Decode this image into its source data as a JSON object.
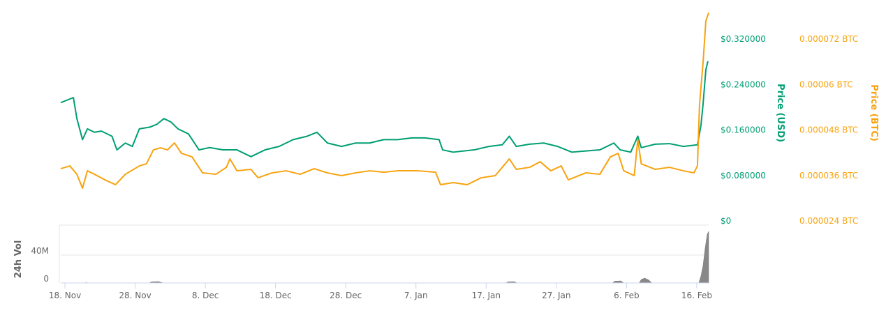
{
  "chart_data": {
    "type": "line",
    "x_unit": "days since 18. Nov",
    "x_ticks": [
      {
        "day": 0,
        "label": "18. Nov"
      },
      {
        "day": 10,
        "label": "28. Nov"
      },
      {
        "day": 20,
        "label": "8. Dec"
      },
      {
        "day": 30,
        "label": "18. Dec"
      },
      {
        "day": 40,
        "label": "28. Dec"
      },
      {
        "day": 50,
        "label": "7. Jan"
      },
      {
        "day": 60,
        "label": "17. Jan"
      },
      {
        "day": 70,
        "label": "27. Jan"
      },
      {
        "day": 80,
        "label": "6. Feb"
      },
      {
        "day": 90,
        "label": "16. Feb"
      }
    ],
    "xlim": [
      -0.6,
      91.7
    ],
    "usd_axis": {
      "label": "Price (USD)",
      "ylim": [
        0,
        0.32
      ],
      "ticks": [
        {
          "v": 0,
          "label": "$0"
        },
        {
          "v": 0.08,
          "label": "$0.080000"
        },
        {
          "v": 0.16,
          "label": "$0.160000"
        },
        {
          "v": 0.24,
          "label": "$0.240000"
        },
        {
          "v": 0.32,
          "label": "$0.320000"
        }
      ]
    },
    "btc_axis": {
      "label": "Price (BTC)",
      "ylim": [
        2.4e-05,
        7.2e-05
      ],
      "ticks": [
        {
          "v": 2.4e-05,
          "label": "0.000024 BTC"
        },
        {
          "v": 3.6e-05,
          "label": "0.000036 BTC"
        },
        {
          "v": 4.8e-05,
          "label": "0.000048 BTC"
        },
        {
          "v": 6e-05,
          "label": "0.00006 BTC"
        },
        {
          "v": 7.2e-05,
          "label": "0.000072 BTC"
        }
      ]
    },
    "vol_axis": {
      "label": "24h Vol",
      "ylim": [
        0,
        83000000
      ],
      "ticks": [
        {
          "v": 0,
          "label": "0"
        },
        {
          "v": 40000000,
          "label": "40M"
        }
      ]
    },
    "series": [
      {
        "name": "Price (USD)",
        "color": "#009e73",
        "points": [
          [
            -0.6,
            0.208
          ],
          [
            1.2,
            0.217
          ],
          [
            1.7,
            0.18
          ],
          [
            2.5,
            0.143
          ],
          [
            3.2,
            0.162
          ],
          [
            4.2,
            0.156
          ],
          [
            5.2,
            0.158
          ],
          [
            6.7,
            0.149
          ],
          [
            7.4,
            0.125
          ],
          [
            8.6,
            0.137
          ],
          [
            9.6,
            0.131
          ],
          [
            10.6,
            0.162
          ],
          [
            12.1,
            0.165
          ],
          [
            13.1,
            0.17
          ],
          [
            14.1,
            0.18
          ],
          [
            15.1,
            0.174
          ],
          [
            16.1,
            0.162
          ],
          [
            17.6,
            0.153
          ],
          [
            19.1,
            0.125
          ],
          [
            20.6,
            0.129
          ],
          [
            22.5,
            0.125
          ],
          [
            24.5,
            0.125
          ],
          [
            26.5,
            0.113
          ],
          [
            28.5,
            0.125
          ],
          [
            30.5,
            0.131
          ],
          [
            32.5,
            0.143
          ],
          [
            34.5,
            0.149
          ],
          [
            35.9,
            0.156
          ],
          [
            37.4,
            0.137
          ],
          [
            39.4,
            0.131
          ],
          [
            41.4,
            0.137
          ],
          [
            43.4,
            0.137
          ],
          [
            45.4,
            0.143
          ],
          [
            47.4,
            0.143
          ],
          [
            49.4,
            0.146
          ],
          [
            51.3,
            0.146
          ],
          [
            53.3,
            0.143
          ],
          [
            53.8,
            0.125
          ],
          [
            55.3,
            0.121
          ],
          [
            58.3,
            0.125
          ],
          [
            60.4,
            0.131
          ],
          [
            62.3,
            0.134
          ],
          [
            63.3,
            0.149
          ],
          [
            64.3,
            0.131
          ],
          [
            66.2,
            0.135
          ],
          [
            68.2,
            0.137
          ],
          [
            70.2,
            0.131
          ],
          [
            72.2,
            0.121
          ],
          [
            74.2,
            0.123
          ],
          [
            76.2,
            0.125
          ],
          [
            78.2,
            0.137
          ],
          [
            79.1,
            0.125
          ],
          [
            80.6,
            0.121
          ],
          [
            81.6,
            0.149
          ],
          [
            82.1,
            0.129
          ],
          [
            84.1,
            0.135
          ],
          [
            86.1,
            0.136
          ],
          [
            88.1,
            0.131
          ],
          [
            90.1,
            0.134
          ],
          [
            90.6,
            0.168
          ],
          [
            90.9,
            0.205
          ],
          [
            91.3,
            0.266
          ],
          [
            91.6,
            0.281
          ]
        ]
      },
      {
        "name": "Price (BTC)",
        "color": "#f7a30f",
        "points": [
          [
            -0.6,
            3.778e-05
          ],
          [
            0.7,
            3.852e-05
          ],
          [
            1.7,
            3.631e-05
          ],
          [
            2.5,
            3.264e-05
          ],
          [
            3.2,
            3.723e-05
          ],
          [
            4.2,
            3.631e-05
          ],
          [
            5.7,
            3.484e-05
          ],
          [
            7.2,
            3.356e-05
          ],
          [
            8.6,
            3.631e-05
          ],
          [
            10.6,
            3.852e-05
          ],
          [
            11.6,
            3.907e-05
          ],
          [
            12.6,
            4.274e-05
          ],
          [
            13.6,
            4.33e-05
          ],
          [
            14.6,
            4.274e-05
          ],
          [
            15.6,
            4.458e-05
          ],
          [
            16.6,
            4.183e-05
          ],
          [
            18.1,
            4.091e-05
          ],
          [
            19.6,
            3.668e-05
          ],
          [
            21.5,
            3.631e-05
          ],
          [
            23.0,
            3.815e-05
          ],
          [
            23.5,
            4.036e-05
          ],
          [
            24.5,
            3.723e-05
          ],
          [
            26.5,
            3.76e-05
          ],
          [
            27.5,
            3.539e-05
          ],
          [
            29.5,
            3.668e-05
          ],
          [
            31.5,
            3.723e-05
          ],
          [
            33.5,
            3.631e-05
          ],
          [
            35.5,
            3.778e-05
          ],
          [
            37.4,
            3.668e-05
          ],
          [
            39.4,
            3.595e-05
          ],
          [
            41.4,
            3.668e-05
          ],
          [
            43.4,
            3.723e-05
          ],
          [
            45.4,
            3.686e-05
          ],
          [
            47.4,
            3.723e-05
          ],
          [
            50.3,
            3.723e-05
          ],
          [
            52.8,
            3.686e-05
          ],
          [
            53.5,
            3.356e-05
          ],
          [
            55.3,
            3.411e-05
          ],
          [
            57.3,
            3.356e-05
          ],
          [
            59.3,
            3.539e-05
          ],
          [
            61.3,
            3.595e-05
          ],
          [
            62.3,
            3.815e-05
          ],
          [
            63.3,
            4.036e-05
          ],
          [
            64.3,
            3.76e-05
          ],
          [
            66.2,
            3.815e-05
          ],
          [
            67.7,
            3.962e-05
          ],
          [
            69.2,
            3.723e-05
          ],
          [
            70.7,
            3.852e-05
          ],
          [
            71.7,
            3.484e-05
          ],
          [
            74.2,
            3.668e-05
          ],
          [
            76.2,
            3.631e-05
          ],
          [
            77.7,
            4.091e-05
          ],
          [
            78.8,
            4.183e-05
          ],
          [
            79.6,
            3.723e-05
          ],
          [
            81.1,
            3.595e-05
          ],
          [
            81.6,
            4.55e-05
          ],
          [
            82.1,
            3.907e-05
          ],
          [
            84.1,
            3.76e-05
          ],
          [
            86.1,
            3.815e-05
          ],
          [
            88.1,
            3.723e-05
          ],
          [
            89.6,
            3.668e-05
          ],
          [
            90.1,
            3.852e-05
          ],
          [
            90.4,
            5.469e-05
          ],
          [
            90.9,
            6.572e-05
          ],
          [
            91.3,
            7.674e-05
          ],
          [
            91.7,
            7.895e-05
          ]
        ]
      },
      {
        "name": "24h Vol",
        "color": "#888888",
        "type": "area",
        "points": [
          [
            -0.6,
            0
          ],
          [
            2.8,
            0
          ],
          [
            3.0,
            600000
          ],
          [
            3.4,
            0
          ],
          [
            12.0,
            0
          ],
          [
            12.3,
            1500000
          ],
          [
            13.3,
            2000000
          ],
          [
            14.0,
            0
          ],
          [
            62.8,
            0
          ],
          [
            63.1,
            1500000
          ],
          [
            64.0,
            1800000
          ],
          [
            64.4,
            0
          ],
          [
            78.0,
            0
          ],
          [
            78.3,
            2500000
          ],
          [
            79.2,
            3000000
          ],
          [
            79.6,
            0
          ],
          [
            81.8,
            0
          ],
          [
            82.1,
            5000000
          ],
          [
            82.6,
            7000000
          ],
          [
            83.2,
            4000000
          ],
          [
            83.6,
            0
          ],
          [
            90.3,
            0
          ],
          [
            90.6,
            10000000
          ],
          [
            90.9,
            25000000
          ],
          [
            91.2,
            50000000
          ],
          [
            91.5,
            70000000
          ],
          [
            91.7,
            74000000
          ]
        ]
      }
    ]
  }
}
